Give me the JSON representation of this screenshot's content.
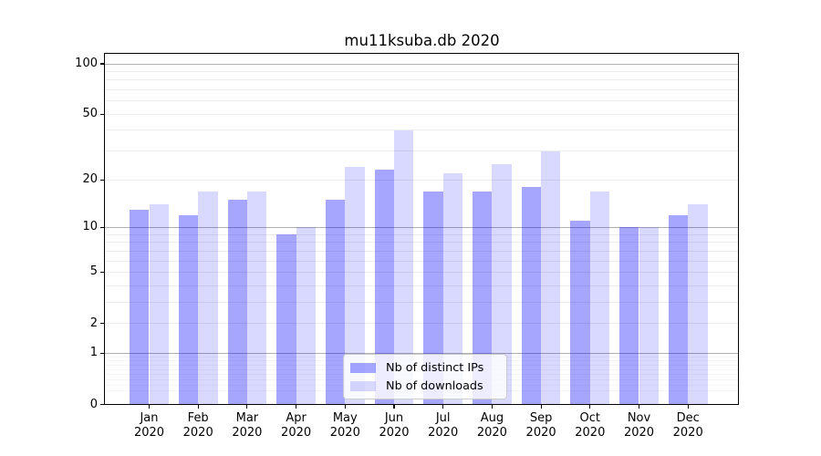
{
  "title": "mu11ksuba.db 2020",
  "chart_data": {
    "type": "bar",
    "title": "mu11ksuba.db 2020",
    "categories": [
      "Jan 2020",
      "Feb 2020",
      "Mar 2020",
      "Apr 2020",
      "May 2020",
      "Jun 2020",
      "Jul 2020",
      "Aug 2020",
      "Sep 2020",
      "Oct 2020",
      "Nov 2020",
      "Dec 2020"
    ],
    "x": {
      "months": [
        "Jan",
        "Feb",
        "Mar",
        "Apr",
        "May",
        "Jun",
        "Jul",
        "Aug",
        "Sep",
        "Oct",
        "Nov",
        "Dec"
      ],
      "year": "2020"
    },
    "series": [
      {
        "name": "Nb of distinct IPs",
        "color": "rgba(0,0,255,0.35)",
        "color_hex_on_white": "#a6a6ff",
        "values": [
          13,
          12,
          15,
          9,
          15,
          23,
          17,
          17,
          18,
          11,
          10,
          12
        ]
      },
      {
        "name": "Nb of downloads",
        "color": "rgba(0,0,255,0.15)",
        "color_hex_on_white": "#d9d9ff",
        "values": [
          14,
          17,
          17,
          10,
          24,
          40,
          22,
          25,
          30,
          17,
          10,
          14
        ]
      }
    ],
    "y_axis": {
      "scale": "log1p",
      "tick_values": [
        0,
        1,
        2,
        5,
        10,
        20,
        50,
        100
      ],
      "tick_labels": [
        "0",
        "1",
        "2",
        "5",
        "10",
        "20",
        "50",
        "100"
      ],
      "major_gridlines": [
        1,
        10,
        100
      ],
      "minor_gridlines": [
        0.2,
        0.3,
        0.4,
        0.5,
        0.6,
        0.7,
        0.8,
        0.9,
        2,
        3,
        4,
        5,
        6,
        7,
        8,
        9,
        20,
        30,
        40,
        50,
        60,
        70,
        80,
        90
      ],
      "range_top": 114
    },
    "legend": {
      "position": "lower center"
    },
    "grid": true
  },
  "colors": {
    "major_grid": "#b0b0b0",
    "minor_grid": "#ececec",
    "faint_grid": "#f5f5f5",
    "axis": "#000000",
    "background": "#ffffff"
  }
}
